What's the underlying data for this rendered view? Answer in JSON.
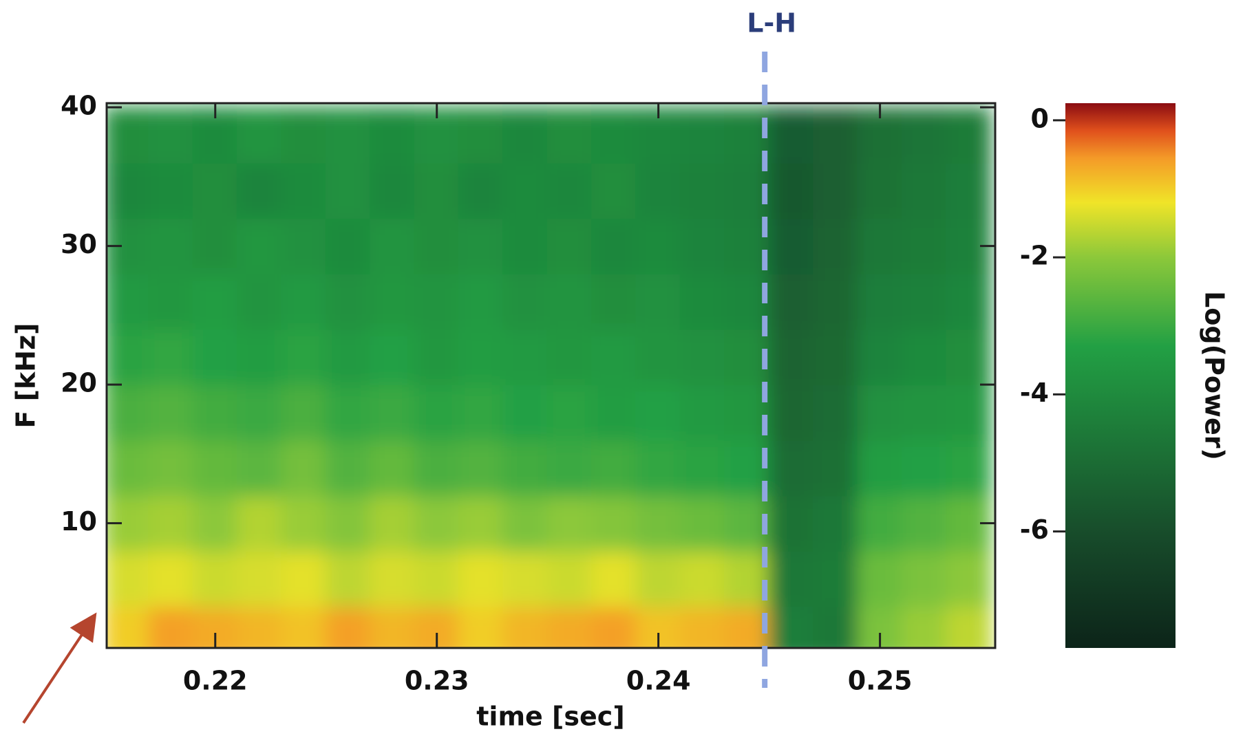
{
  "chart_data": {
    "type": "heatmap",
    "x_label": "time [sec]",
    "y_label": "F [kHz]",
    "colorbar_label": "Log(Power)",
    "annotation": {
      "text": "L-H",
      "x": 0.2448,
      "color": "#8fa6e0",
      "text_color": "#2b3d7a"
    },
    "x": [
      0.216,
      0.218,
      0.22,
      0.222,
      0.224,
      0.226,
      0.228,
      0.23,
      0.232,
      0.234,
      0.236,
      0.238,
      0.24,
      0.242,
      0.244,
      0.246,
      0.248,
      0.25,
      0.252,
      0.254
    ],
    "y": [
      2,
      6,
      10,
      14,
      18,
      22,
      26,
      30,
      34,
      38
    ],
    "z": [
      [
        -1.0,
        -0.6,
        -0.7,
        -0.8,
        -0.9,
        -0.6,
        -0.8,
        -0.7,
        -1.0,
        -0.8,
        -0.7,
        -0.6,
        -0.9,
        -0.8,
        -0.7,
        -4.4,
        -4.6,
        -2.2,
        -1.9,
        -1.6
      ],
      [
        -1.4,
        -1.3,
        -1.5,
        -1.4,
        -1.3,
        -1.6,
        -1.4,
        -1.5,
        -1.3,
        -1.4,
        -1.5,
        -1.3,
        -1.6,
        -1.5,
        -1.7,
        -4.6,
        -4.5,
        -2.4,
        -2.2,
        -2.0
      ],
      [
        -1.9,
        -1.8,
        -2.0,
        -1.7,
        -1.9,
        -2.1,
        -1.8,
        -2.0,
        -1.9,
        -2.2,
        -2.0,
        -2.1,
        -2.3,
        -2.4,
        -2.6,
        -4.8,
        -4.6,
        -2.9,
        -2.7,
        -2.5
      ],
      [
        -2.4,
        -2.3,
        -2.5,
        -2.6,
        -2.3,
        -2.7,
        -2.5,
        -2.8,
        -2.7,
        -2.9,
        -3.0,
        -2.9,
        -3.1,
        -3.2,
        -3.3,
        -5.0,
        -4.9,
        -3.4,
        -3.3,
        -3.2
      ],
      [
        -2.8,
        -2.7,
        -2.9,
        -3.0,
        -2.8,
        -3.1,
        -3.0,
        -3.2,
        -3.1,
        -3.3,
        -3.2,
        -3.4,
        -3.3,
        -3.5,
        -3.6,
        -5.2,
        -5.0,
        -3.8,
        -3.7,
        -3.6
      ],
      [
        -3.2,
        -3.1,
        -3.3,
        -3.4,
        -3.2,
        -3.5,
        -3.3,
        -3.6,
        -3.4,
        -3.5,
        -3.6,
        -3.5,
        -3.7,
        -3.8,
        -3.9,
        -5.3,
        -5.1,
        -4.2,
        -4.0,
        -3.9
      ],
      [
        -3.5,
        -3.6,
        -3.4,
        -3.7,
        -3.5,
        -3.8,
        -3.6,
        -3.7,
        -3.5,
        -3.8,
        -3.7,
        -3.9,
        -3.8,
        -4.0,
        -4.1,
        -5.4,
        -5.2,
        -4.4,
        -4.3,
        -4.1
      ],
      [
        -3.8,
        -3.7,
        -3.9,
        -3.6,
        -3.8,
        -4.0,
        -3.7,
        -3.9,
        -3.8,
        -4.0,
        -3.9,
        -4.1,
        -4.0,
        -4.2,
        -4.3,
        -5.5,
        -5.3,
        -4.6,
        -4.5,
        -4.3
      ],
      [
        -4.1,
        -4.0,
        -3.9,
        -4.2,
        -4.0,
        -3.8,
        -4.1,
        -3.9,
        -4.2,
        -4.0,
        -4.1,
        -3.9,
        -4.2,
        -4.3,
        -4.4,
        -5.6,
        -5.4,
        -4.8,
        -4.6,
        -4.4
      ],
      [
        -3.9,
        -3.8,
        -4.0,
        -3.7,
        -3.9,
        -3.8,
        -4.0,
        -3.8,
        -3.9,
        -4.1,
        -3.9,
        -4.0,
        -4.1,
        -4.2,
        -4.3,
        -5.5,
        -5.4,
        -4.9,
        -4.7,
        -4.5
      ]
    ],
    "xlim": [
      0.2151,
      0.2552
    ],
    "xticks": [
      0.22,
      0.23,
      0.24,
      0.25
    ],
    "ylim": [
      1,
      40.3
    ],
    "yticks": [
      10,
      20,
      30,
      40
    ],
    "zlim": [
      -7.7,
      0.25
    ],
    "zticks": [
      -6,
      -4,
      -2,
      0
    ],
    "colormap": [
      {
        "value": -7.7,
        "color": "#0c2419"
      },
      {
        "value": -6.1,
        "color": "#174a2a"
      },
      {
        "value": -3.3,
        "color": "#22a044"
      },
      {
        "value": -2.0,
        "color": "#8cc83a"
      },
      {
        "value": -1.2,
        "color": "#f0e428"
      },
      {
        "value": -0.55,
        "color": "#f49a28"
      },
      {
        "value": -0.15,
        "color": "#e0501c"
      },
      {
        "value": 0.25,
        "color": "#8a0c12"
      }
    ]
  }
}
